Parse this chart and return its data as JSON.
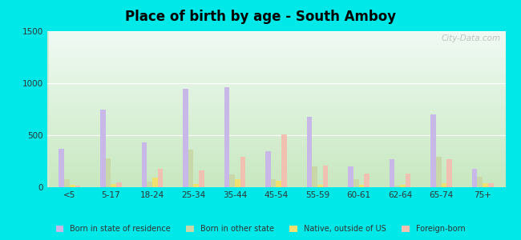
{
  "title": "Place of birth by age - South Amboy",
  "categories": [
    "<5",
    "5-17",
    "18-24",
    "25-34",
    "35-44",
    "45-54",
    "55-59",
    "60-61",
    "62-64",
    "65-74",
    "75+"
  ],
  "series": {
    "Born in state of residence": [
      370,
      750,
      430,
      950,
      960,
      350,
      680,
      200,
      270,
      700,
      175
    ],
    "Born in other state": [
      80,
      280,
      55,
      360,
      120,
      80,
      200,
      80,
      15,
      290,
      100
    ],
    "Native, outside of US": [
      20,
      30,
      95,
      30,
      80,
      60,
      20,
      25,
      20,
      35,
      35
    ],
    "Foreign-born": [
      15,
      50,
      175,
      165,
      290,
      505,
      205,
      130,
      130,
      270,
      35
    ]
  },
  "colors": {
    "Born in state of residence": "#c8b8e8",
    "Born in other state": "#c8d8a8",
    "Native, outside of US": "#f0e070",
    "Foreign-born": "#f0c0b0"
  },
  "ylim": [
    0,
    1500
  ],
  "yticks": [
    0,
    500,
    1000,
    1500
  ],
  "figure_bg": "#00e8e8",
  "watermark": "City-Data.com",
  "bg_top": "#e8f8f0",
  "bg_bottom": "#c8e8c8"
}
